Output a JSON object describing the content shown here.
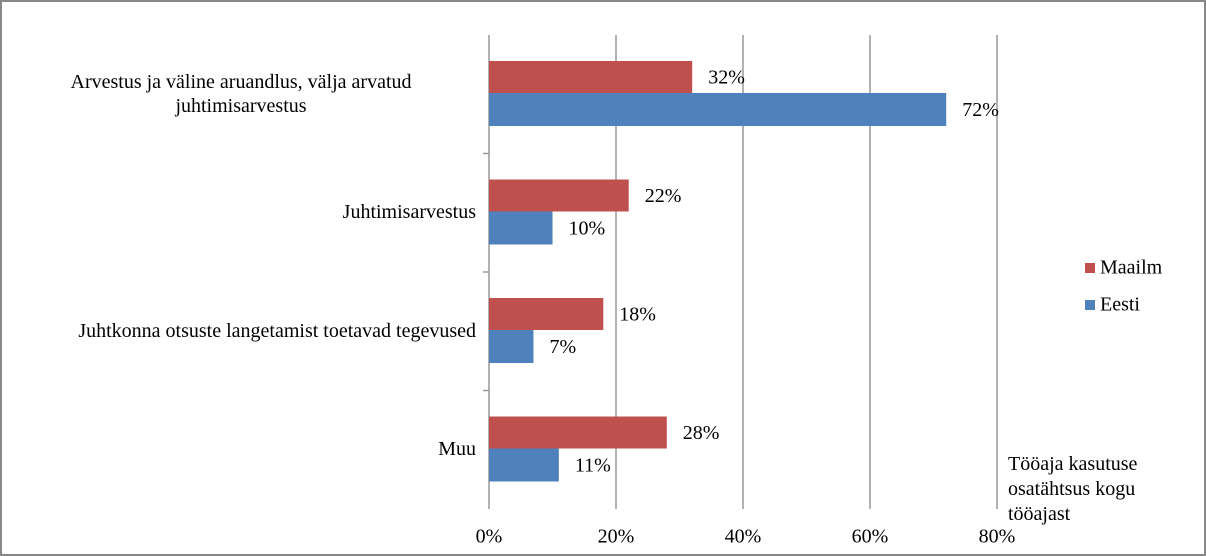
{
  "chart_data": {
    "type": "hbar",
    "categories": [
      "Arvestus ja väline aruandlus, välja arvatud juhtimisarvestus",
      "Juhtimisarvestus",
      "Juhtkonna otsuste langetamist toetavad tegevused",
      "Muu"
    ],
    "series": [
      {
        "name": "Maailm",
        "color": "#c0504d",
        "values": [
          32,
          22,
          18,
          28
        ],
        "value_labels": [
          "32%",
          "22%",
          "18%",
          "28%"
        ]
      },
      {
        "name": "Eesti",
        "color": "#4f81bd",
        "values": [
          72,
          10,
          7,
          11
        ],
        "value_labels": [
          "72%",
          "10%",
          "7%",
          "11%"
        ]
      }
    ],
    "x_label": "Tööaja kasutuse osatähtsus kogu tööajast",
    "xlim": [
      0,
      80
    ],
    "xticks": [
      {
        "value": 0,
        "label": "0%"
      },
      {
        "value": 20,
        "label": "20%"
      },
      {
        "value": 40,
        "label": "40%"
      },
      {
        "value": 60,
        "label": "60%"
      },
      {
        "value": 80,
        "label": "80%"
      }
    ],
    "grid": true,
    "legend": "right"
  }
}
